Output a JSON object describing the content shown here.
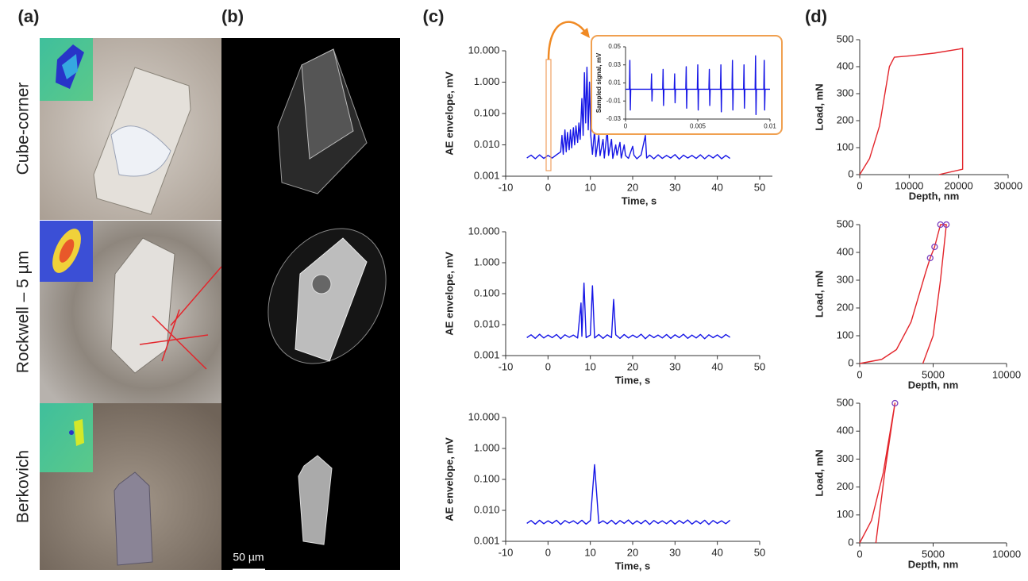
{
  "panel_labels": [
    "(a)",
    "(b)",
    "(c)",
    "(d)"
  ],
  "row_labels": [
    "Cube-corner",
    "Rockwell – 5 µm",
    "Berkovich"
  ],
  "scale_bar": "50 µm",
  "chart_data": [
    {
      "type": "line",
      "x_label": "Time, s",
      "y_label": "AE envelope, mV",
      "log_y": true,
      "xlim": [
        -10,
        53
      ],
      "xticks": [
        -10,
        0,
        10,
        20,
        30,
        40,
        50
      ],
      "ylim": [
        0.001,
        10
      ],
      "yticks": [
        0.001,
        {
          "value": 0.01,
          "label": "0.010"
        },
        {
          "value": 0.1,
          "label": "0.100"
        },
        {
          "value": 1,
          "label": "1.000"
        },
        {
          "value": 10,
          "label": "10.000"
        }
      ],
      "series": [
        {
          "color": "#1515e6",
          "x": [
            -5,
            -4,
            -3,
            -2,
            -1,
            0,
            1,
            2,
            3,
            3.3,
            3.6,
            4,
            4.3,
            4.6,
            5,
            5.3,
            5.6,
            6,
            6.3,
            6.6,
            7,
            7.3,
            7.6,
            8,
            8.3,
            8.6,
            8.9,
            9.2,
            9.5,
            9.8,
            10.1,
            10.5,
            11,
            11.3,
            12,
            12.3,
            13,
            13.3,
            14,
            14.3,
            15,
            15.3,
            16,
            16.3,
            17,
            17.3,
            18,
            18.3,
            19,
            20,
            20.3,
            21,
            22,
            23,
            23.3,
            24,
            25,
            26,
            27,
            28,
            29,
            30,
            31,
            32,
            33,
            34,
            35,
            36,
            37,
            38,
            39,
            40,
            41,
            42,
            43
          ],
          "values": [
            0.0038,
            0.0047,
            0.0036,
            0.0048,
            0.0037,
            0.0046,
            0.0038,
            0.0048,
            0.006,
            0.02,
            0.005,
            0.03,
            0.006,
            0.025,
            0.007,
            0.03,
            0.008,
            0.035,
            0.01,
            0.04,
            0.012,
            0.05,
            0.015,
            0.3,
            0.02,
            2,
            0.05,
            3,
            0.03,
            1,
            0.02,
            0.005,
            0.03,
            0.0042,
            0.02,
            0.0045,
            0.015,
            0.0038,
            0.03,
            0.0046,
            0.015,
            0.0037,
            0.01,
            0.0047,
            0.012,
            0.0038,
            0.01,
            0.0046,
            0.0037,
            0.009,
            0.0047,
            0.0036,
            0.0048,
            0.02,
            0.0038,
            0.0047,
            0.0036,
            0.0048,
            0.0037,
            0.0046,
            0.0038,
            0.0049,
            0.0035,
            0.0047,
            0.0038,
            0.0046,
            0.0037,
            0.0048,
            0.0036,
            0.0047,
            0.0038,
            0.0049,
            0.0036,
            0.0046,
            0.0037
          ]
        }
      ]
    },
    {
      "type": "line",
      "y_label": "Sampled signal, mV",
      "xlim": [
        0,
        0.01
      ],
      "xticks": [
        0,
        0.005,
        0.01
      ],
      "ylim": [
        -0.03,
        0.05
      ],
      "yticks": [
        -0.03,
        -0.01,
        0.01,
        0.03,
        0.05
      ],
      "series": [
        {
          "color": "#1515e6",
          "x": [
            0,
            0.00027,
            0.0003,
            0.00033,
            0.00036,
            0.00177,
            0.0018,
            0.00183,
            0.00186,
            0.00257,
            0.0026,
            0.00263,
            0.00266,
            0.00337,
            0.0034,
            0.00343,
            0.00346,
            0.00417,
            0.0042,
            0.00423,
            0.00426,
            0.00497,
            0.005,
            0.00503,
            0.00506,
            0.00577,
            0.0058,
            0.00583,
            0.00586,
            0.00657,
            0.0066,
            0.00663,
            0.00666,
            0.00737,
            0.0074,
            0.00743,
            0.00746,
            0.00817,
            0.0082,
            0.00823,
            0.00826,
            0.00897,
            0.009,
            0.00903,
            0.00906,
            0.00957,
            0.0096,
            0.00963,
            0.00966,
            0.01
          ],
          "values": [
            0.003,
            0.003,
            0.035,
            -0.02,
            0.003,
            0.003,
            0.02,
            -0.01,
            0.003,
            0.003,
            0.025,
            -0.015,
            0.003,
            0.003,
            0.02,
            -0.012,
            0.003,
            0.003,
            0.028,
            -0.018,
            0.003,
            0.003,
            0.03,
            -0.02,
            0.003,
            0.003,
            0.025,
            -0.015,
            0.003,
            0.003,
            0.03,
            -0.022,
            0.003,
            0.003,
            0.035,
            -0.02,
            0.003,
            0.003,
            0.03,
            -0.018,
            0.003,
            0.003,
            0.04,
            -0.025,
            0.003,
            0.003,
            0.035,
            -0.02,
            0.003,
            0.003
          ]
        }
      ]
    },
    {
      "type": "line",
      "x_label": "Time, s",
      "y_label": "AE envelope, mV",
      "log_y": true,
      "xlim": [
        -10,
        50
      ],
      "xticks": [
        -10,
        0,
        10,
        20,
        30,
        40,
        50
      ],
      "ylim": [
        0.001,
        10
      ],
      "yticks": [
        0.001,
        {
          "value": 0.01,
          "label": "0.010"
        },
        {
          "value": 0.1,
          "label": "0.100"
        },
        {
          "value": 1,
          "label": "1.000"
        },
        {
          "value": 10,
          "label": "10.000"
        }
      ],
      "series": [
        {
          "color": "#1515e6",
          "x": [
            -5,
            -4,
            -3,
            -2,
            -1,
            0,
            1,
            2,
            3,
            4,
            5,
            6,
            7,
            7.8,
            8,
            8.5,
            9,
            10,
            10.5,
            11,
            12,
            13,
            14,
            15,
            15.5,
            16,
            17,
            18,
            19,
            20,
            21,
            22,
            23,
            24,
            25,
            26,
            27,
            28,
            29,
            30,
            31,
            32,
            33,
            34,
            35,
            36,
            37,
            38,
            39,
            40,
            41,
            42,
            43
          ],
          "values": [
            0.0038,
            0.0047,
            0.0036,
            0.0049,
            0.0037,
            0.0046,
            0.0038,
            0.0048,
            0.0035,
            0.0047,
            0.0039,
            0.0046,
            0.0037,
            0.05,
            0.0042,
            0.22,
            0.0038,
            0.0046,
            0.18,
            0.0037,
            0.0048,
            0.0036,
            0.0047,
            0.0038,
            0.065,
            0.0047,
            0.0036,
            0.0048,
            0.0037,
            0.0046,
            0.0038,
            0.0049,
            0.0035,
            0.0047,
            0.0038,
            0.0046,
            0.0037,
            0.0048,
            0.0036,
            0.0047,
            0.0038,
            0.0049,
            0.0036,
            0.0046,
            0.0037,
            0.0048,
            0.0035,
            0.0047,
            0.0038,
            0.0046,
            0.0037,
            0.0048,
            0.0039
          ]
        }
      ]
    },
    {
      "type": "line",
      "x_label": "Time, s",
      "y_label": "AE envelope, mV",
      "log_y": true,
      "xlim": [
        -10,
        50
      ],
      "xticks": [
        -10,
        0,
        10,
        20,
        30,
        40,
        50
      ],
      "ylim": [
        0.001,
        10
      ],
      "yticks": [
        0.001,
        {
          "value": 0.01,
          "label": "0.010"
        },
        {
          "value": 0.1,
          "label": "0.100"
        },
        {
          "value": 1,
          "label": "1.000"
        },
        {
          "value": 10,
          "label": "10.000"
        }
      ],
      "series": [
        {
          "color": "#1515e6",
          "x": [
            -5,
            -4,
            -3,
            -2,
            -1,
            0,
            1,
            2,
            3,
            4,
            5,
            6,
            7,
            8,
            9,
            10,
            11,
            12,
            13,
            14,
            15,
            16,
            17,
            18,
            19,
            20,
            21,
            22,
            23,
            24,
            25,
            26,
            27,
            28,
            29,
            30,
            31,
            32,
            33,
            34,
            35,
            36,
            37,
            38,
            39,
            40,
            41,
            42,
            43
          ],
          "values": [
            0.0038,
            0.0047,
            0.0036,
            0.0048,
            0.0037,
            0.0046,
            0.0038,
            0.0048,
            0.0035,
            0.0047,
            0.0039,
            0.0046,
            0.0037,
            0.0048,
            0.0036,
            0.0047,
            0.3,
            0.0038,
            0.0046,
            0.0037,
            0.0048,
            0.0036,
            0.0047,
            0.0038,
            0.0049,
            0.0036,
            0.0046,
            0.0037,
            0.0048,
            0.0035,
            0.0047,
            0.0038,
            0.0046,
            0.0037,
            0.0048,
            0.0036,
            0.0047,
            0.0038,
            0.0049,
            0.0036,
            0.0046,
            0.0037,
            0.0048,
            0.0035,
            0.0047,
            0.0038,
            0.0046,
            0.0037,
            0.0048
          ]
        }
      ]
    },
    {
      "type": "line",
      "x_label": "Depth, nm",
      "y_label": "Load, mN",
      "xlim": [
        0,
        30000
      ],
      "xticks": [
        0,
        10000,
        20000,
        30000
      ],
      "ylim": [
        0,
        500
      ],
      "yticks": [
        0,
        100,
        200,
        300,
        400,
        500
      ],
      "series": [
        {
          "color": "#e3262c",
          "x": [
            0,
            2000,
            4000,
            6000,
            7000,
            10000,
            15000,
            20000,
            20800,
            20800,
            16000
          ],
          "values": [
            0,
            60,
            180,
            400,
            435,
            440,
            450,
            465,
            468,
            20,
            0
          ]
        }
      ]
    },
    {
      "type": "line",
      "x_label": "Depth, nm",
      "y_label": "Load, mN",
      "xlim": [
        0,
        10000
      ],
      "xticks": [
        0,
        5000,
        10000
      ],
      "ylim": [
        0,
        500
      ],
      "yticks": [
        0,
        100,
        200,
        300,
        400,
        500
      ],
      "series": [
        {
          "color": "#e3262c",
          "x": [
            0,
            1500,
            2500,
            3500,
            4500,
            4800,
            5100,
            5500,
            5900,
            5500,
            5000,
            4300
          ],
          "values": [
            0,
            15,
            50,
            150,
            330,
            380,
            420,
            500,
            500,
            300,
            100,
            0
          ]
        },
        {
          "color": "#7a3fbf",
          "marker": "circle",
          "x": [
            4800,
            5100,
            5500,
            5900
          ],
          "values": [
            380,
            420,
            500,
            500
          ]
        }
      ]
    },
    {
      "type": "line",
      "x_label": "Depth, nm",
      "y_label": "Load, mN",
      "xlim": [
        0,
        10000
      ],
      "xticks": [
        0,
        5000,
        10000
      ],
      "ylim": [
        0,
        500
      ],
      "yticks": [
        0,
        100,
        200,
        300,
        400,
        500
      ],
      "series": [
        {
          "color": "#e3262c",
          "x": [
            0,
            800,
            1600,
            2400,
            1700,
            1100
          ],
          "values": [
            0,
            80,
            250,
            500,
            250,
            0
          ]
        },
        {
          "color": "#7a3fbf",
          "marker": "circle",
          "x": [
            2400
          ],
          "values": [
            500
          ]
        }
      ]
    }
  ]
}
